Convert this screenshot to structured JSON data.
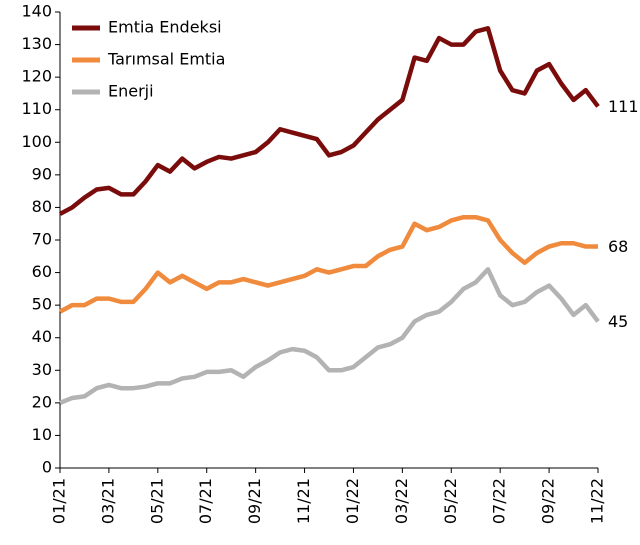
{
  "chart_data": {
    "type": "line",
    "categories": [
      "01/21",
      null,
      null,
      null,
      "03/21",
      null,
      null,
      null,
      "05/21",
      null,
      null,
      null,
      "07/21",
      null,
      null,
      null,
      "09/21",
      null,
      null,
      null,
      "11/21",
      null,
      null,
      null,
      "01/22",
      null,
      null,
      null,
      "03/22",
      null,
      null,
      null,
      "05/22",
      null,
      null,
      null,
      "07/22",
      null,
      null,
      null,
      "09/22",
      null,
      null,
      null,
      "11/22"
    ],
    "series": [
      {
        "name": "Emtia Endeksi",
        "color": "#7b0c0c",
        "values": [
          78,
          80,
          83,
          85.5,
          86,
          84,
          84,
          88,
          93,
          91,
          95,
          92,
          94,
          95.5,
          95,
          96,
          97,
          100,
          104,
          103,
          102,
          101,
          96,
          97,
          99,
          103,
          107,
          110,
          113,
          126,
          125,
          132,
          130,
          130,
          134,
          135,
          122,
          116,
          115,
          122,
          124,
          118,
          113,
          116,
          111
        ]
      },
      {
        "name": "Tarımsal Emtia",
        "color": "#f08a3c",
        "values": [
          48,
          50,
          50,
          52,
          52,
          51,
          51,
          55,
          60,
          57,
          59,
          57,
          55,
          57,
          57,
          58,
          57,
          56,
          57,
          58,
          59,
          61,
          60,
          61,
          62,
          62,
          65,
          67,
          68,
          75,
          73,
          74,
          76,
          77,
          77,
          76,
          70,
          66,
          63,
          66,
          68,
          69,
          69,
          68,
          68
        ]
      },
      {
        "name": "Enerji",
        "color": "#b3b3b3",
        "values": [
          20,
          21.5,
          22,
          24.5,
          25.5,
          24.5,
          24.5,
          25,
          26,
          26,
          27.5,
          28,
          29.5,
          29.5,
          30,
          28,
          31,
          33,
          35.5,
          36.5,
          36,
          34,
          30,
          30,
          31,
          34,
          37,
          38,
          40,
          45,
          47,
          48,
          51,
          55,
          57,
          61,
          53,
          50,
          51,
          54,
          56,
          52,
          47,
          50,
          45
        ]
      }
    ],
    "ylim": [
      0,
      140
    ],
    "yticks": [
      0,
      10,
      20,
      30,
      40,
      50,
      60,
      70,
      80,
      90,
      100,
      110,
      120,
      130,
      140
    ],
    "grid": false,
    "legend": "top-left"
  }
}
